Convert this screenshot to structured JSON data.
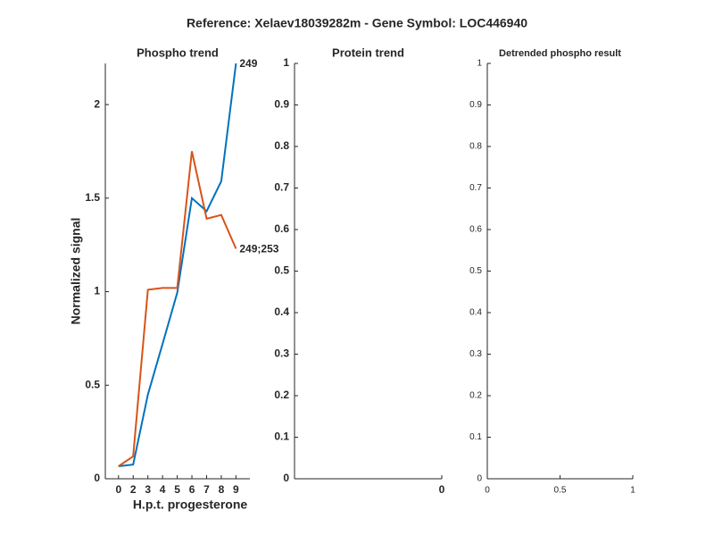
{
  "title": "Reference:  Xelaev18039282m - Gene Symbol:  LOC446940",
  "chart_data": [
    {
      "type": "line",
      "title": "Phospho trend",
      "xlabel": "H.p.t. progesterone",
      "ylabel": "Normalized signal",
      "categories": [
        "0",
        "2",
        "3",
        "4",
        "5",
        "6",
        "7",
        "8",
        "9"
      ],
      "series": [
        {
          "name": "249",
          "color": "#0072bd",
          "values": [
            0.067,
            0.076,
            0.45,
            0.72,
            0.995,
            1.5,
            1.43,
            1.59,
            2.22
          ]
        },
        {
          "name": "249;253",
          "color": "#d95319",
          "values": [
            0.067,
            0.12,
            1.01,
            1.02,
            1.02,
            1.75,
            1.39,
            1.41,
            1.23
          ]
        }
      ],
      "ylim": [
        0,
        2.22
      ],
      "yticks": [
        0,
        0.5,
        1,
        1.5,
        2
      ]
    },
    {
      "type": "line",
      "title": "Protein trend",
      "series": [],
      "xlim": [
        -1,
        0
      ],
      "xticks": [
        0
      ],
      "ylim": [
        0,
        1
      ],
      "yticks": [
        0,
        0.1,
        0.2,
        0.3,
        0.4,
        0.5,
        0.6,
        0.7,
        0.8,
        0.9,
        1
      ]
    },
    {
      "type": "line",
      "title": "Detrended phospho result",
      "series": [],
      "xlim": [
        0,
        1
      ],
      "xticks": [
        0,
        0.5,
        1
      ],
      "ylim": [
        0,
        1
      ],
      "yticks": [
        0,
        0.1,
        0.2,
        0.3,
        0.4,
        0.5,
        0.6,
        0.7,
        0.8,
        0.9,
        1
      ]
    }
  ]
}
